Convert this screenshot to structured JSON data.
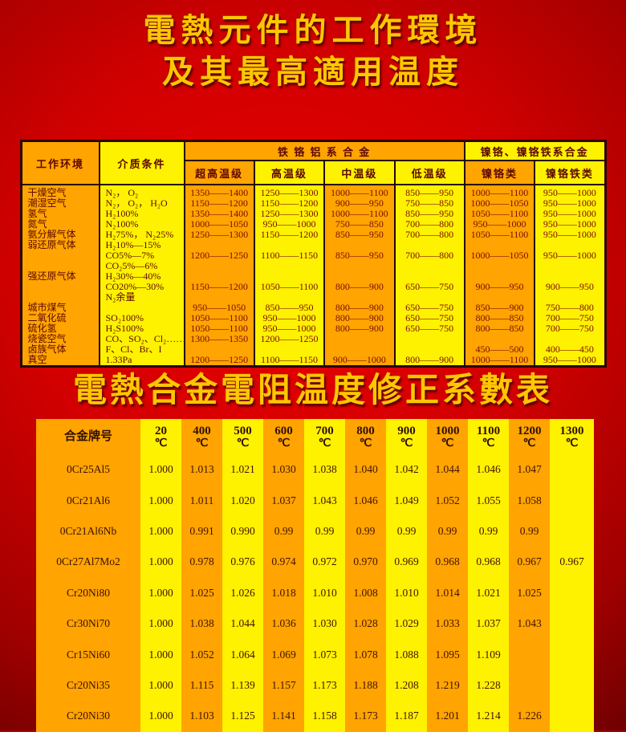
{
  "page": {
    "title_line1": "電熱元件的工作環境",
    "title_line2": "及其最高適用温度",
    "subtitle": "電熱合金電阻温度修正系數表"
  },
  "colors": {
    "background_center": "#e60000",
    "background_edge": "#4a0000",
    "title_gold": "#ffc702",
    "cell_orange": "#ffa400",
    "cell_yellow": "#fff200",
    "table_border": "#2a0400",
    "table_text": "#6e0a00"
  },
  "env_table": {
    "header": {
      "col_env": "工作环境",
      "col_medium": "介质条件",
      "group_fecral": "铁 铬 铝 系 合 金",
      "group_nicr": "镍铬、镍铬铁系合金",
      "sub": [
        "超高温级",
        "高温级",
        "中温级",
        "低温级",
        "镍铬类",
        "镍铬铁类"
      ]
    },
    "lines": [
      [
        "干燥空气",
        "N₂， O₂",
        "1350——1400",
        "1250——1300",
        "1000——1100",
        "850——950",
        "1000——1100",
        "950——1000"
      ],
      [
        "潮湿空气",
        "N₂， O₂， H₂O",
        "1150——1200",
        "1150——1200",
        "900——950",
        "750——850",
        "1000——1050",
        "950——1000"
      ],
      [
        "氢气",
        "H₂100%",
        "1350——1400",
        "1250——1300",
        "1000——1100",
        "850——950",
        "1050——1100",
        "950——1000"
      ],
      [
        "氮气",
        "N₂100%",
        "1000——1050",
        "950——1000",
        "750——850",
        "700——800",
        "950——1000",
        "950——1000"
      ],
      [
        "氨分解气体",
        "H₂75%， N₂25%",
        "1250——1300",
        "1150——1200",
        "850——950",
        "700——800",
        "1050——1100",
        "950——1000"
      ],
      [
        "弱还原气体",
        "H₂10%—15%",
        "",
        "",
        "",
        "",
        "",
        ""
      ],
      [
        "",
        "CO5%—7%",
        "1200——1250",
        "1100——1150",
        "850——950",
        "700——800",
        "1000——1050",
        "950——1000"
      ],
      [
        "",
        "CO₂5%—6%",
        "",
        "",
        "",
        "",
        "",
        ""
      ],
      [
        "强还原气体",
        "H₂30%—40%",
        "",
        "",
        "",
        "",
        "",
        ""
      ],
      [
        "",
        "CO20%—30%",
        "1150——1200",
        "1050——1100",
        "800——900",
        "650——750",
        "900——950",
        "900——950"
      ],
      [
        "",
        "N₂余量",
        "",
        "",
        "",
        "",
        "",
        ""
      ],
      [
        "城市煤气",
        "",
        "950——1050",
        "850——950",
        "800——900",
        "650——750",
        "850——900",
        "750——800"
      ],
      [
        "二氧化硫",
        "SO₂100%",
        "1050——1100",
        "950——1000",
        "800——900",
        "650——750",
        "800——850",
        "700——750"
      ],
      [
        "硫化氢",
        "H₂S100%",
        "1050——1100",
        "950——1000",
        "800——900",
        "650——750",
        "800——850",
        "700——750"
      ],
      [
        "烧瓷空气",
        "CO、SO₂、Cl₂……",
        "1300——1350",
        "1200——1250",
        "",
        "",
        "",
        ""
      ],
      [
        "卤族气体",
        "F、Cl、Br、I",
        "",
        "",
        "",
        "",
        "450——500",
        "400——450"
      ],
      [
        "真空",
        "1.33Pa",
        "1200——1250",
        "1100——1150",
        "900——1000",
        "800——900",
        "1000——1100",
        "950——1000"
      ]
    ]
  },
  "coef_table": {
    "name_header": "合金牌号",
    "unit": "℃",
    "temp_headers": [
      "20",
      "400",
      "500",
      "600",
      "700",
      "800",
      "900",
      "1000",
      "1100",
      "1200",
      "1300"
    ],
    "rows": [
      {
        "name": "0Cr25Al5",
        "values": [
          "1.000",
          "1.013",
          "1.021",
          "1.030",
          "1.038",
          "1.040",
          "1.042",
          "1.044",
          "1.046",
          "1.047",
          ""
        ]
      },
      {
        "name": "0Cr21Al6",
        "values": [
          "1.000",
          "1.011",
          "1.020",
          "1.037",
          "1.043",
          "1.046",
          "1.049",
          "1.052",
          "1.055",
          "1.058",
          ""
        ]
      },
      {
        "name": "0Cr21Al6Nb",
        "values": [
          "1.000",
          "0.991",
          "0.990",
          "0.99",
          "0.99",
          "0.99",
          "0.99",
          "0.99",
          "0.99",
          "0.99",
          ""
        ]
      },
      {
        "name": "0Cr27Al7Mo2",
        "values": [
          "1.000",
          "0.978",
          "0.976",
          "0.974",
          "0.972",
          "0.970",
          "0.969",
          "0.968",
          "0.968",
          "0.967",
          "0.967"
        ]
      },
      {
        "name": "Cr20Ni80",
        "values": [
          "1.000",
          "1.025",
          "1.026",
          "1.018",
          "1.010",
          "1.008",
          "1.010",
          "1.014",
          "1.021",
          "1.025",
          ""
        ]
      },
      {
        "name": "Cr30Ni70",
        "values": [
          "1.000",
          "1.038",
          "1.044",
          "1.036",
          "1.030",
          "1.028",
          "1.029",
          "1.033",
          "1.037",
          "1.043",
          ""
        ]
      },
      {
        "name": "Cr15Ni60",
        "values": [
          "1.000",
          "1.052",
          "1.064",
          "1.069",
          "1.073",
          "1.078",
          "1.088",
          "1.095",
          "1.109",
          "",
          ""
        ]
      },
      {
        "name": "Cr20Ni35",
        "values": [
          "1.000",
          "1.115",
          "1.139",
          "1.157",
          "1.173",
          "1.188",
          "1.208",
          "1.219",
          "1.228",
          "",
          ""
        ]
      },
      {
        "name": "Cr20Ni30",
        "values": [
          "1.000",
          "1.103",
          "1.125",
          "1.141",
          "1.158",
          "1.173",
          "1.187",
          "1.201",
          "1.214",
          "1.226",
          ""
        ]
      }
    ]
  }
}
